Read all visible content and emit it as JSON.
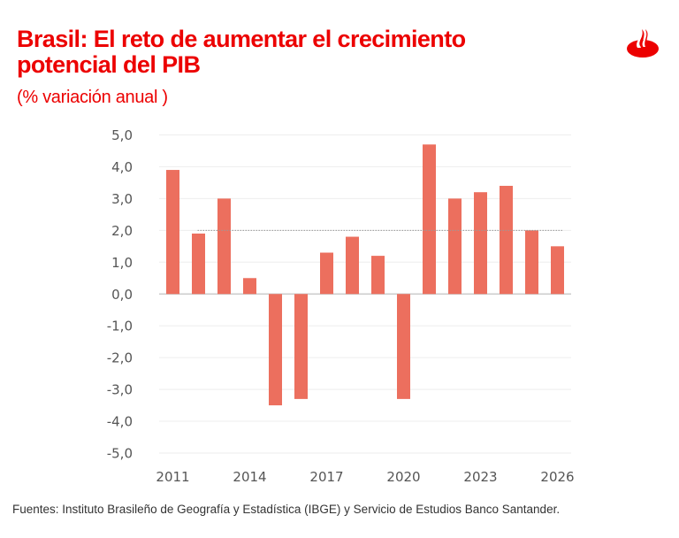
{
  "header": {
    "title": "Brasil: El reto de aumentar el crecimiento potencial del PIB",
    "subtitle": "(% variación anual )",
    "logo": "santander-flame-icon"
  },
  "footer": {
    "source": "Fuentes: Instituto Brasileño de Geografía y Estadística (IBGE) y Servicio de Estudios Banco Santander."
  },
  "colors": {
    "title": "#ec0000",
    "bar": "#ec6f5e",
    "grid": "#eeeeee",
    "zero_line": "#cccccc",
    "reference_line": "#999999",
    "tick_text": "#555555"
  },
  "chart_data": {
    "type": "bar",
    "title": "Brasil: El reto de aumentar el crecimiento potencial del PIB",
    "subtitle": "(% variación anual )",
    "xlabel": "",
    "ylabel": "% variación anual",
    "categories": [
      "2011",
      "2012",
      "2013",
      "2014",
      "2015",
      "2016",
      "2017",
      "2018",
      "2019",
      "2020",
      "2021",
      "2022",
      "2023",
      "2024",
      "2025",
      "2026"
    ],
    "values": [
      3.9,
      1.9,
      3.0,
      0.5,
      -3.5,
      -3.3,
      1.3,
      1.8,
      1.2,
      -3.3,
      4.7,
      3.0,
      3.2,
      3.4,
      2.0,
      1.5
    ],
    "ylim": [
      -5,
      5
    ],
    "yticks": [
      5,
      4,
      3,
      2,
      1,
      0,
      -1,
      -2,
      -3,
      -4,
      -5
    ],
    "ytick_labels": [
      "5,0",
      "4,0",
      "3,0",
      "2,0",
      "1,0",
      "0,0",
      "-1,0",
      "-2,0",
      "-3,0",
      "-4,0",
      "-5,0"
    ],
    "xtick_labels": [
      "2011",
      "2014",
      "2017",
      "2020",
      "2023",
      "2026"
    ],
    "reference_line": {
      "value": 2.0,
      "style": "dotted",
      "from": "2012",
      "to": "2026"
    },
    "grid": true,
    "legend": "none"
  }
}
